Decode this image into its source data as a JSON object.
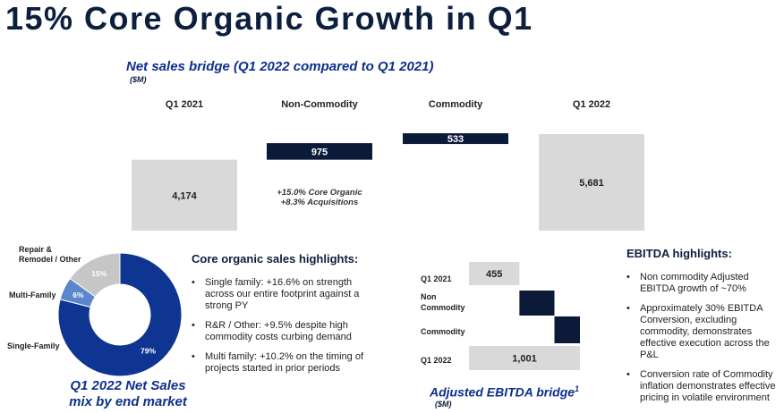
{
  "page": {
    "title": "15% Core Organic Growth in Q1"
  },
  "chart_data": [
    {
      "type": "bar",
      "subtype": "waterfall",
      "title": "Net sales bridge (Q1 2022 compared to Q1 2021)",
      "units": "($M)",
      "categories": [
        "Q1 2021",
        "Non-Commodity",
        "Commodity",
        "Q1 2022"
      ],
      "values": [
        4174,
        975,
        533,
        5681
      ],
      "labels": [
        "4,174",
        "975",
        "533",
        "5,681"
      ],
      "annotation": [
        "+15.0% Core Organic",
        "+8.3% Acquisitions"
      ],
      "colors": {
        "total": "#d9d9d9",
        "increment": "#0c1a3a"
      }
    },
    {
      "type": "pie",
      "subtype": "donut",
      "title": [
        "Q1 2022 Net Sales",
        "mix by end market"
      ],
      "slices": [
        {
          "name": "Single-Family",
          "value": 79,
          "label": "79%",
          "color": "#0e3591"
        },
        {
          "name": "Multi-Family",
          "value": 6,
          "label": "6%",
          "color": "#5b86cc"
        },
        {
          "name": "Repair & Remodel / Other",
          "name_lines": [
            "Repair &",
            "Remodel / Other"
          ],
          "value": 15,
          "label": "15%",
          "color": "#c6c6c6"
        }
      ]
    },
    {
      "type": "bar",
      "subtype": "waterfall-horizontal",
      "title": "Adjusted EBITDA bridge",
      "title_superscript": "1",
      "units": "($M)",
      "categories": [
        "Q1 2021",
        "Non Commodity",
        "Commodity",
        "Q1 2022"
      ],
      "category_lines": [
        [
          "Q1 2021"
        ],
        [
          "Non",
          "Commodity"
        ],
        [
          "Commodity"
        ],
        [
          "Q1 2022"
        ]
      ],
      "values": [
        455,
        316,
        230,
        1001
      ],
      "labels": [
        "455",
        "",
        "",
        "1,001"
      ],
      "colors": {
        "total": "#d9d9d9",
        "increment": "#0c1a3a"
      }
    }
  ],
  "core_organic": {
    "heading": "Core organic sales highlights:",
    "bullets": [
      "Single family: +16.6% on strength across our entire footprint against a strong PY",
      "R&R / Other: +9.5% despite high commodity costs curbing demand",
      "Multi family: +10.2% on the timing of projects started in prior periods"
    ]
  },
  "ebitda": {
    "heading": "EBITDA highlights:",
    "bullets": [
      "Non commodity Adjusted EBITDA growth of ~70%",
      "Approximately 30% EBITDA Conversion, excluding commodity, demonstrates effective execution across the P&L",
      "Conversion rate of Commodity inflation demonstrates effective pricing in volatile environment"
    ]
  }
}
